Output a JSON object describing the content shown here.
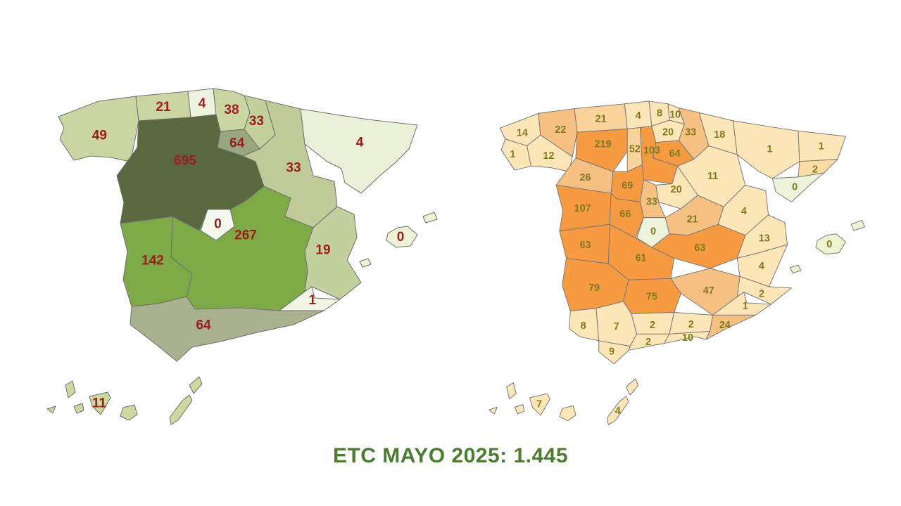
{
  "title": "ETC MAYO 2025: 1.445",
  "title_color": "#4b7d30",
  "total_label": "1.445",
  "left_map": {
    "id": "communities-map",
    "value_color": "#9b1d1d",
    "border_color": "#6e6e6e",
    "colors": {
      "canary_islands": "#ccd8a0",
      "balearic_islands": "#eff3d6"
    },
    "regions": [
      {
        "id": "galicia",
        "value": "49",
        "color": "#c9d6a2"
      },
      {
        "id": "asturias",
        "value": "21",
        "color": "#c9d6a2"
      },
      {
        "id": "cantabria",
        "value": "4",
        "color": "#edf3de"
      },
      {
        "id": "pais_vasco",
        "value": "38",
        "color": "#c9d6a2"
      },
      {
        "id": "navarra",
        "value": "33",
        "color": "#c4d09c"
      },
      {
        "id": "la_rioja",
        "value": "64",
        "color": "#99a77f"
      },
      {
        "id": "aragon",
        "value": "33",
        "color": "#bfcc9a"
      },
      {
        "id": "cataluna",
        "value": "4",
        "color": "#eaf0d8"
      },
      {
        "id": "castilla_y_leon",
        "value": "695",
        "color": "#5a6840"
      },
      {
        "id": "castilla_la_mancha",
        "value": "267",
        "color": "#7daa47"
      },
      {
        "id": "c_valenciana",
        "value": "19",
        "color": "#c2d09e"
      },
      {
        "id": "murcia",
        "value": "1",
        "color": "#f1f5e3"
      },
      {
        "id": "extremadura",
        "value": "142",
        "color": "#7daa47"
      },
      {
        "id": "andalucia",
        "value": "64",
        "color": "#a9b28e"
      },
      {
        "id": "baleares",
        "value": "0",
        "color": "#eff3d6"
      },
      {
        "id": "canarias",
        "value": "11",
        "color": "#ccd8a0"
      },
      {
        "id": "madrid",
        "value": "0",
        "color": "#f5f8ec"
      }
    ]
  },
  "right_map": {
    "id": "provinces-map",
    "value_color": "#7f7a1e",
    "border_color": "#777777",
    "colors": {
      "canary_islands": "#fce5b6",
      "balearic_islands": "#f0f3cf"
    },
    "regions": [
      {
        "id": "a_coruna",
        "value": "14",
        "color": "#fce5b6"
      },
      {
        "id": "lugo",
        "value": "22",
        "color": "#f6c083"
      },
      {
        "id": "pontevedra",
        "value": "1",
        "color": "#fce5b6"
      },
      {
        "id": "ourense",
        "value": "12",
        "color": "#fce5b6"
      },
      {
        "id": "asturias",
        "value": "21",
        "color": "#f9d29c"
      },
      {
        "id": "cantabria",
        "value": "4",
        "color": "#fce5b6"
      },
      {
        "id": "vizcaya",
        "value": "8",
        "color": "#fce5b6"
      },
      {
        "id": "gipuzkoa",
        "value": "10",
        "color": "#fce5b6"
      },
      {
        "id": "alava",
        "value": "20",
        "color": "#fce5b6"
      },
      {
        "id": "navarra",
        "value": "33",
        "color": "#f6c083"
      },
      {
        "id": "la_rioja",
        "value": "64",
        "color": "#f79b42"
      },
      {
        "id": "leon",
        "value": "219",
        "color": "#f79b42"
      },
      {
        "id": "palencia",
        "value": "52",
        "color": "#f9d29c"
      },
      {
        "id": "burgos",
        "value": "103",
        "color": "#f79b42"
      },
      {
        "id": "soria",
        "value": "20",
        "color": "#fce5b6"
      },
      {
        "id": "zamora",
        "value": "26",
        "color": "#f6c083"
      },
      {
        "id": "valladolid",
        "value": "69",
        "color": "#f79b42"
      },
      {
        "id": "segovia",
        "value": "33",
        "color": "#f6c083"
      },
      {
        "id": "salamanca",
        "value": "107",
        "color": "#f79b42"
      },
      {
        "id": "avila",
        "value": "66",
        "color": "#f79b42"
      },
      {
        "id": "guadalajara",
        "value": "21",
        "color": "#f6c083"
      },
      {
        "id": "cuenca",
        "value": "63",
        "color": "#f79b42"
      },
      {
        "id": "toledo",
        "value": "61",
        "color": "#f79b42"
      },
      {
        "id": "caceres",
        "value": "63",
        "color": "#f79b42"
      },
      {
        "id": "badajoz",
        "value": "79",
        "color": "#f79b42"
      },
      {
        "id": "ciudad_real",
        "value": "75",
        "color": "#f79b42"
      },
      {
        "id": "albacete",
        "value": "47",
        "color": "#f6c083"
      },
      {
        "id": "huesca",
        "value": "18",
        "color": "#fce5b6"
      },
      {
        "id": "zaragoza",
        "value": "11",
        "color": "#fce5b6"
      },
      {
        "id": "teruel",
        "value": "4",
        "color": "#fce5b6"
      },
      {
        "id": "lleida",
        "value": "1",
        "color": "#fce5b6"
      },
      {
        "id": "girona",
        "value": "1",
        "color": "#fce5b6"
      },
      {
        "id": "barcelona",
        "value": "2",
        "color": "#f9dca6"
      },
      {
        "id": "tarragona",
        "value": "0",
        "color": "#eef3dc"
      },
      {
        "id": "castellon",
        "value": "13",
        "color": "#fce5b6"
      },
      {
        "id": "valencia",
        "value": "4",
        "color": "#fce5b6"
      },
      {
        "id": "alicante",
        "value": "2",
        "color": "#fce5b6"
      },
      {
        "id": "murcia",
        "value": "1",
        "color": "#fce5b6"
      },
      {
        "id": "huelva",
        "value": "8",
        "color": "#fce5b6"
      },
      {
        "id": "sevilla",
        "value": "7",
        "color": "#fce5b6"
      },
      {
        "id": "cordoba",
        "value": "2",
        "color": "#fce5b6"
      },
      {
        "id": "jaen",
        "value": "2",
        "color": "#fce5b6"
      },
      {
        "id": "granada",
        "value": "10",
        "color": "#fce5b6"
      },
      {
        "id": "almeria",
        "value": "24",
        "color": "#f6c083"
      },
      {
        "id": "cadiz",
        "value": "9",
        "color": "#fce5b6"
      },
      {
        "id": "malaga",
        "value": "2",
        "color": "#fce5b6"
      },
      {
        "id": "mallorca",
        "value": "0",
        "color": "#f0f3cf"
      },
      {
        "id": "tenerife",
        "value": "7",
        "color": "#fce5b6"
      },
      {
        "id": "las_palmas",
        "value": "4",
        "color": "#fce5b6"
      },
      {
        "id": "madrid",
        "value": "0",
        "color": "#eef3dc"
      }
    ]
  },
  "chart_data": {
    "type": "choropleth",
    "title": "ETC MAYO 2025: 1.445",
    "total": 1445,
    "maps": [
      {
        "name": "communities",
        "value_label_color": "#9b1d1d",
        "palette": "green",
        "values": {
          "galicia": 49,
          "asturias": 21,
          "cantabria": 4,
          "pais_vasco": 38,
          "navarra": 33,
          "la_rioja": 64,
          "castilla_y_leon": 695,
          "aragon": 33,
          "cataluna": 4,
          "madrid": 0,
          "castilla_la_mancha": 267,
          "c_valenciana": 19,
          "murcia": 1,
          "extremadura": 142,
          "andalucia": 64,
          "baleares": 0,
          "canarias": 11
        }
      },
      {
        "name": "provinces",
        "value_label_color": "#7f7a1e",
        "palette": "orange",
        "values": {
          "a_coruna": 14,
          "lugo": 22,
          "pontevedra": 1,
          "ourense": 12,
          "asturias": 21,
          "cantabria": 4,
          "vizcaya": 8,
          "gipuzkoa": 10,
          "alava": 20,
          "navarra": 33,
          "la_rioja": 64,
          "leon": 219,
          "palencia": 52,
          "burgos": 103,
          "soria": 20,
          "zamora": 26,
          "valladolid": 69,
          "segovia": 33,
          "salamanca": 107,
          "avila": 66,
          "madrid": 0,
          "guadalajara": 21,
          "cuenca": 63,
          "toledo": 61,
          "caceres": 63,
          "badajoz": 79,
          "ciudad_real": 75,
          "albacete": 47,
          "huesca": 18,
          "zaragoza": 11,
          "teruel": 4,
          "lleida": 1,
          "girona": 1,
          "barcelona": 2,
          "tarragona": 0,
          "castellon": 13,
          "valencia": 4,
          "alicante": 2,
          "murcia": 1,
          "huelva": 8,
          "sevilla": 7,
          "cordoba": 2,
          "jaen": 2,
          "granada": 10,
          "almeria": 24,
          "cadiz": 9,
          "malaga": 2,
          "mallorca": 0,
          "tenerife": 7,
          "las_palmas": 4
        }
      }
    ]
  }
}
